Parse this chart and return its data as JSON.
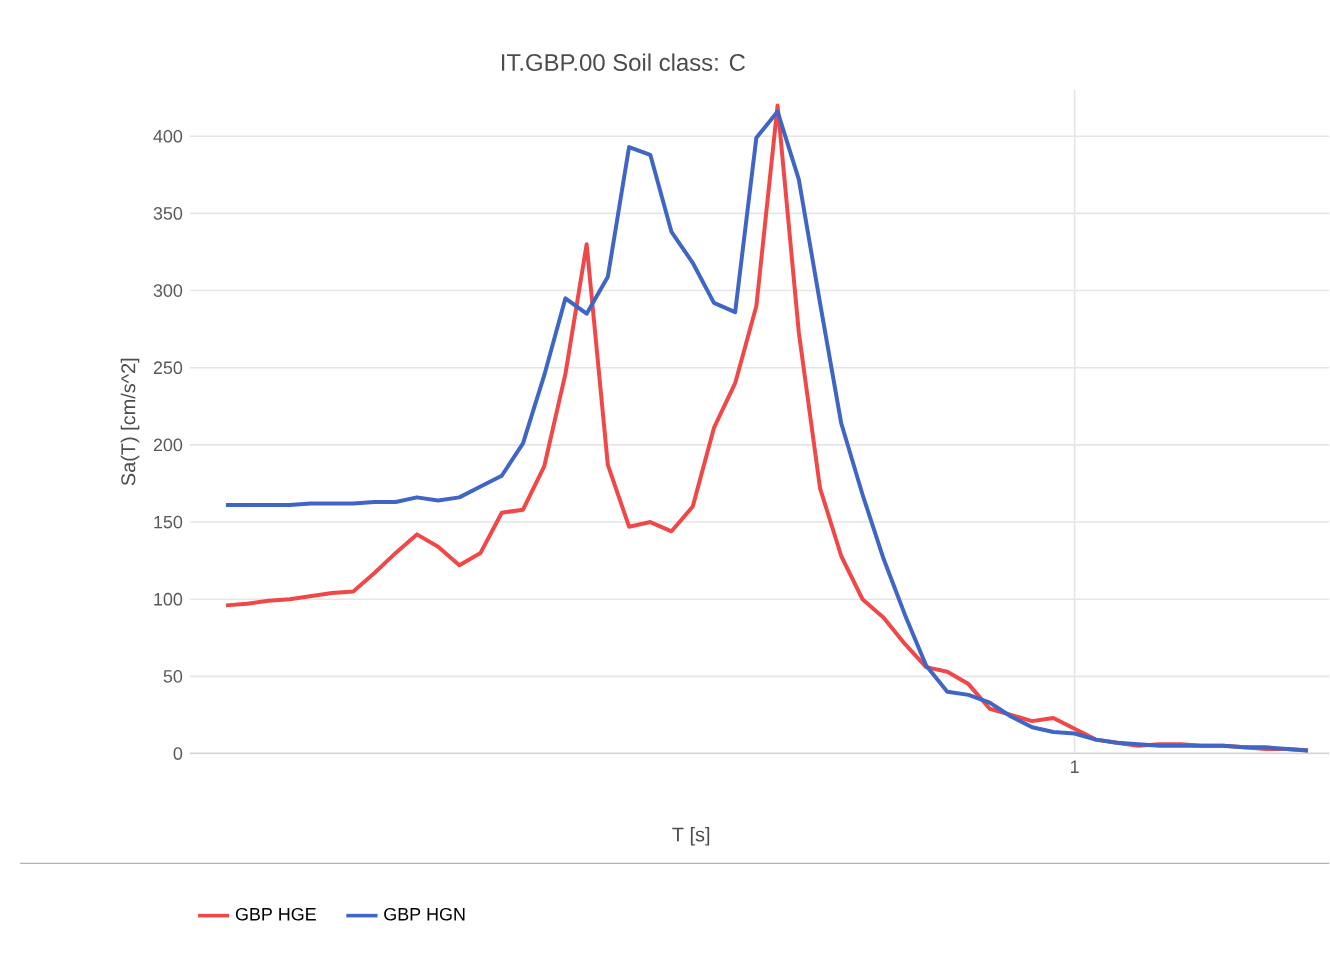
{
  "chart_data": {
    "type": "line",
    "title": "IT.GBP.00 Soil class: C",
    "xlabel": "T [s]",
    "ylabel": "Sa(T) [cm/s^2]",
    "grid": true,
    "legend": "bottom",
    "ylim": [
      0,
      430
    ],
    "yticks": [
      0,
      50,
      100,
      150,
      200,
      250,
      300,
      350,
      400
    ],
    "categories": [
      null,
      null,
      null,
      null,
      null,
      null,
      null,
      null,
      null,
      null,
      null,
      null,
      null,
      null,
      null,
      null,
      null,
      null,
      null,
      null,
      null,
      null,
      null,
      null,
      null,
      null,
      null,
      null,
      null,
      null,
      null,
      null,
      null,
      null,
      null,
      null,
      null,
      null,
      null,
      null,
      "1",
      null,
      null,
      null,
      null,
      null,
      null,
      null,
      null,
      null,
      null,
      null
    ],
    "series": [
      {
        "name": "GBP HGE",
        "color": "#f04848",
        "values": [
          96,
          97,
          99,
          100,
          102,
          104,
          105,
          117,
          130,
          142,
          134,
          122,
          130,
          156,
          158,
          186,
          246,
          330,
          187,
          147,
          150,
          144,
          160,
          211,
          240,
          290,
          420,
          273,
          172,
          128,
          100,
          88,
          71,
          56,
          53,
          45,
          29,
          25,
          21,
          23,
          16,
          9,
          7,
          5,
          6,
          6,
          5,
          5,
          4,
          3,
          3,
          2
        ]
      },
      {
        "name": "GBP HGN",
        "color": "#3f66c4",
        "values": [
          161,
          161,
          161,
          161,
          162,
          162,
          162,
          163,
          163,
          166,
          164,
          166,
          173,
          180,
          201,
          245,
          295,
          285,
          309,
          393,
          388,
          338,
          318,
          292,
          286,
          399,
          416,
          372,
          292,
          214,
          168,
          126,
          90,
          57,
          40,
          38,
          33,
          24,
          17,
          14,
          13,
          9,
          7,
          6,
          5,
          5,
          5,
          5,
          4,
          4,
          3,
          2
        ]
      }
    ]
  }
}
